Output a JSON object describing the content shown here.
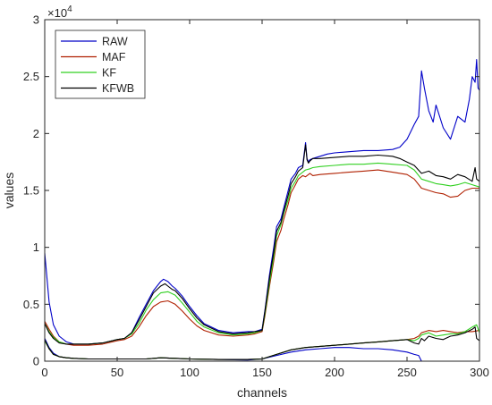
{
  "chart_data": {
    "type": "line",
    "xlabel": "channels",
    "ylabel": "values",
    "xlim": [
      0,
      300
    ],
    "ylim": [
      0,
      3
    ],
    "y_multiplier_label": "×10",
    "y_multiplier_exponent": "4",
    "x_ticks": [
      "0",
      "50",
      "100",
      "150",
      "200",
      "250",
      "300"
    ],
    "y_ticks": [
      "0",
      "0.5",
      "1",
      "1.5",
      "2",
      "2.5",
      "3"
    ],
    "grid": false,
    "legend_position": "top-left",
    "series": [
      {
        "name": "RAW",
        "color": "#0000c8",
        "x": [
          0,
          3,
          6,
          10,
          15,
          20,
          30,
          40,
          50,
          55,
          60,
          65,
          70,
          75,
          80,
          82,
          85,
          88,
          90,
          95,
          100,
          105,
          110,
          120,
          130,
          140,
          145,
          150,
          152,
          155,
          158,
          160,
          163,
          165,
          168,
          170,
          173,
          175,
          178,
          180,
          181,
          182,
          183,
          185,
          190,
          195,
          200,
          210,
          220,
          230,
          240,
          245,
          250,
          252,
          255,
          258,
          260,
          262,
          265,
          268,
          270,
          275,
          280,
          285,
          290,
          293,
          295,
          297,
          298,
          299,
          300
        ],
        "y": [
          0.95,
          0.52,
          0.32,
          0.22,
          0.17,
          0.15,
          0.15,
          0.16,
          0.19,
          0.2,
          0.25,
          0.38,
          0.5,
          0.62,
          0.7,
          0.72,
          0.7,
          0.66,
          0.64,
          0.57,
          0.48,
          0.4,
          0.33,
          0.27,
          0.25,
          0.26,
          0.26,
          0.28,
          0.45,
          0.75,
          1.0,
          1.18,
          1.25,
          1.35,
          1.5,
          1.6,
          1.65,
          1.7,
          1.72,
          1.92,
          1.78,
          1.75,
          1.77,
          1.78,
          1.8,
          1.82,
          1.83,
          1.84,
          1.85,
          1.85,
          1.86,
          1.88,
          1.95,
          2.0,
          2.08,
          2.15,
          2.55,
          2.4,
          2.2,
          2.1,
          2.25,
          2.05,
          1.95,
          2.15,
          2.1,
          2.3,
          2.5,
          2.45,
          2.65,
          2.4,
          2.38
        ]
      },
      {
        "name": "MAF",
        "color": "#b02000",
        "x": [
          0,
          3,
          6,
          10,
          15,
          20,
          30,
          40,
          50,
          55,
          60,
          65,
          70,
          75,
          80,
          85,
          90,
          95,
          100,
          105,
          110,
          120,
          130,
          140,
          145,
          150,
          152,
          155,
          158,
          160,
          163,
          165,
          168,
          170,
          173,
          175,
          178,
          180,
          183,
          185,
          190,
          200,
          210,
          220,
          230,
          240,
          250,
          255,
          260,
          265,
          270,
          275,
          280,
          285,
          290,
          295,
          300
        ],
        "y": [
          0.35,
          0.28,
          0.22,
          0.17,
          0.15,
          0.14,
          0.14,
          0.15,
          0.18,
          0.19,
          0.22,
          0.3,
          0.4,
          0.48,
          0.52,
          0.53,
          0.5,
          0.44,
          0.37,
          0.31,
          0.27,
          0.23,
          0.22,
          0.23,
          0.24,
          0.26,
          0.4,
          0.65,
          0.88,
          1.05,
          1.15,
          1.25,
          1.38,
          1.48,
          1.55,
          1.6,
          1.63,
          1.62,
          1.65,
          1.63,
          1.64,
          1.65,
          1.66,
          1.67,
          1.68,
          1.66,
          1.64,
          1.6,
          1.52,
          1.5,
          1.48,
          1.47,
          1.44,
          1.45,
          1.5,
          1.52,
          1.52
        ]
      },
      {
        "name": "KF",
        "color": "#30d020",
        "x": [
          0,
          3,
          6,
          10,
          15,
          20,
          30,
          40,
          50,
          55,
          60,
          65,
          70,
          75,
          80,
          85,
          90,
          95,
          100,
          105,
          110,
          120,
          130,
          140,
          145,
          150,
          152,
          155,
          158,
          160,
          163,
          165,
          168,
          170,
          173,
          175,
          178,
          180,
          183,
          185,
          190,
          200,
          210,
          220,
          230,
          240,
          250,
          255,
          260,
          265,
          270,
          275,
          280,
          285,
          290,
          295,
          300
        ],
        "y": [
          0.33,
          0.26,
          0.21,
          0.17,
          0.15,
          0.15,
          0.15,
          0.16,
          0.19,
          0.2,
          0.24,
          0.33,
          0.45,
          0.54,
          0.6,
          0.61,
          0.58,
          0.51,
          0.43,
          0.35,
          0.3,
          0.25,
          0.23,
          0.24,
          0.25,
          0.27,
          0.42,
          0.68,
          0.92,
          1.1,
          1.2,
          1.3,
          1.42,
          1.52,
          1.58,
          1.63,
          1.66,
          1.68,
          1.69,
          1.7,
          1.71,
          1.72,
          1.73,
          1.73,
          1.74,
          1.73,
          1.72,
          1.68,
          1.6,
          1.58,
          1.56,
          1.55,
          1.54,
          1.55,
          1.57,
          1.55,
          1.53
        ]
      },
      {
        "name": "KFWB",
        "color": "#000000",
        "x": [
          0,
          3,
          6,
          10,
          15,
          20,
          30,
          40,
          50,
          55,
          60,
          65,
          70,
          75,
          80,
          83,
          85,
          88,
          90,
          95,
          100,
          105,
          110,
          120,
          130,
          140,
          145,
          150,
          152,
          155,
          158,
          160,
          163,
          165,
          168,
          170,
          173,
          175,
          178,
          180,
          181,
          182,
          183,
          185,
          190,
          200,
          210,
          220,
          230,
          240,
          245,
          250,
          255,
          260,
          265,
          270,
          275,
          280,
          285,
          290,
          295,
          297,
          298,
          300
        ],
        "y": [
          0.33,
          0.25,
          0.2,
          0.16,
          0.15,
          0.15,
          0.15,
          0.16,
          0.19,
          0.2,
          0.25,
          0.36,
          0.48,
          0.6,
          0.66,
          0.68,
          0.66,
          0.63,
          0.62,
          0.55,
          0.46,
          0.38,
          0.32,
          0.26,
          0.24,
          0.25,
          0.26,
          0.27,
          0.44,
          0.72,
          0.96,
          1.14,
          1.22,
          1.32,
          1.46,
          1.56,
          1.62,
          1.67,
          1.7,
          1.9,
          1.77,
          1.74,
          1.76,
          1.78,
          1.78,
          1.79,
          1.8,
          1.8,
          1.81,
          1.8,
          1.78,
          1.75,
          1.72,
          1.65,
          1.67,
          1.63,
          1.62,
          1.6,
          1.64,
          1.62,
          1.58,
          1.7,
          1.6,
          1.58
        ]
      },
      {
        "name": "RAW",
        "color": "#0000c8",
        "x": [
          0,
          3,
          6,
          10,
          15,
          20,
          30,
          50,
          70,
          80,
          90,
          100,
          120,
          140,
          150,
          160,
          170,
          180,
          190,
          200,
          210,
          220,
          230,
          240,
          250,
          255,
          258,
          260,
          262,
          265,
          300
        ],
        "y": [
          0.2,
          0.12,
          0.07,
          0.04,
          0.03,
          0.025,
          0.02,
          0.02,
          0.02,
          0.03,
          0.025,
          0.02,
          0.015,
          0.01,
          0.02,
          0.05,
          0.08,
          0.1,
          0.11,
          0.12,
          0.12,
          0.11,
          0.11,
          0.1,
          0.08,
          0.06,
          0.05,
          0.0,
          0.0,
          0.0,
          0.0
        ]
      },
      {
        "name": "MAF",
        "color": "#b02000",
        "x": [
          0,
          3,
          6,
          10,
          15,
          20,
          30,
          50,
          70,
          80,
          90,
          100,
          120,
          140,
          150,
          160,
          170,
          180,
          190,
          200,
          210,
          220,
          230,
          240,
          250,
          255,
          258,
          260,
          265,
          270,
          275,
          280,
          285,
          290,
          295,
          300
        ],
        "y": [
          0.18,
          0.11,
          0.06,
          0.04,
          0.03,
          0.025,
          0.02,
          0.02,
          0.02,
          0.03,
          0.025,
          0.02,
          0.015,
          0.015,
          0.02,
          0.06,
          0.1,
          0.12,
          0.13,
          0.14,
          0.15,
          0.16,
          0.17,
          0.18,
          0.19,
          0.2,
          0.22,
          0.25,
          0.27,
          0.26,
          0.27,
          0.26,
          0.25,
          0.26,
          0.26,
          0.27
        ]
      },
      {
        "name": "KF",
        "color": "#30d020",
        "x": [
          0,
          3,
          6,
          10,
          15,
          20,
          30,
          50,
          70,
          80,
          90,
          100,
          120,
          140,
          150,
          160,
          170,
          180,
          190,
          200,
          210,
          220,
          230,
          240,
          250,
          255,
          258,
          260,
          265,
          270,
          275,
          280,
          285,
          290,
          295,
          298,
          300
        ],
        "y": [
          0.18,
          0.11,
          0.06,
          0.04,
          0.03,
          0.025,
          0.02,
          0.02,
          0.02,
          0.03,
          0.025,
          0.02,
          0.015,
          0.015,
          0.02,
          0.06,
          0.1,
          0.12,
          0.13,
          0.14,
          0.15,
          0.16,
          0.17,
          0.18,
          0.19,
          0.18,
          0.2,
          0.23,
          0.25,
          0.22,
          0.23,
          0.24,
          0.24,
          0.26,
          0.3,
          0.32,
          0.25
        ]
      },
      {
        "name": "KFWB",
        "color": "#000000",
        "x": [
          0,
          3,
          6,
          10,
          15,
          20,
          30,
          50,
          70,
          80,
          90,
          100,
          120,
          140,
          150,
          160,
          170,
          180,
          190,
          200,
          210,
          220,
          230,
          240,
          250,
          255,
          258,
          260,
          262,
          265,
          270,
          275,
          280,
          285,
          290,
          295,
          297,
          298,
          300
        ],
        "y": [
          0.19,
          0.11,
          0.06,
          0.04,
          0.03,
          0.025,
          0.02,
          0.02,
          0.02,
          0.03,
          0.025,
          0.02,
          0.015,
          0.015,
          0.02,
          0.06,
          0.1,
          0.12,
          0.13,
          0.14,
          0.15,
          0.16,
          0.17,
          0.18,
          0.19,
          0.16,
          0.15,
          0.2,
          0.18,
          0.22,
          0.2,
          0.19,
          0.22,
          0.23,
          0.25,
          0.28,
          0.3,
          0.2,
          0.18
        ]
      }
    ],
    "legend": [
      {
        "name": "RAW",
        "color": "#0000c8"
      },
      {
        "name": "MAF",
        "color": "#b02000"
      },
      {
        "name": "KF",
        "color": "#30d020"
      },
      {
        "name": "KFWB",
        "color": "#000000"
      }
    ]
  }
}
